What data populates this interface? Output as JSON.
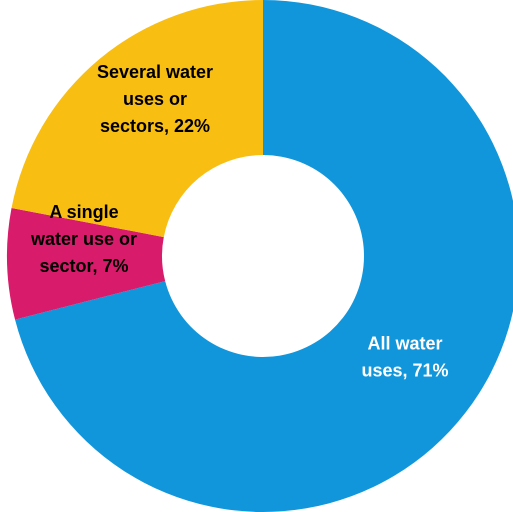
{
  "chart_data": {
    "type": "pie",
    "donut": true,
    "slices": [
      {
        "label_lines": [
          "All water",
          "uses, 71%"
        ],
        "value": 71,
        "color": "#1296DB",
        "text_color": "#ffffff"
      },
      {
        "label_lines": [
          "A single",
          "water use or",
          "sector, 7%"
        ],
        "value": 7,
        "color": "#D81B6A",
        "text_color": "#000000"
      },
      {
        "label_lines": [
          "Several water",
          "uses or",
          "sectors, 22%"
        ],
        "value": 22,
        "color": "#F9BE12",
        "text_color": "#000000"
      }
    ]
  }
}
